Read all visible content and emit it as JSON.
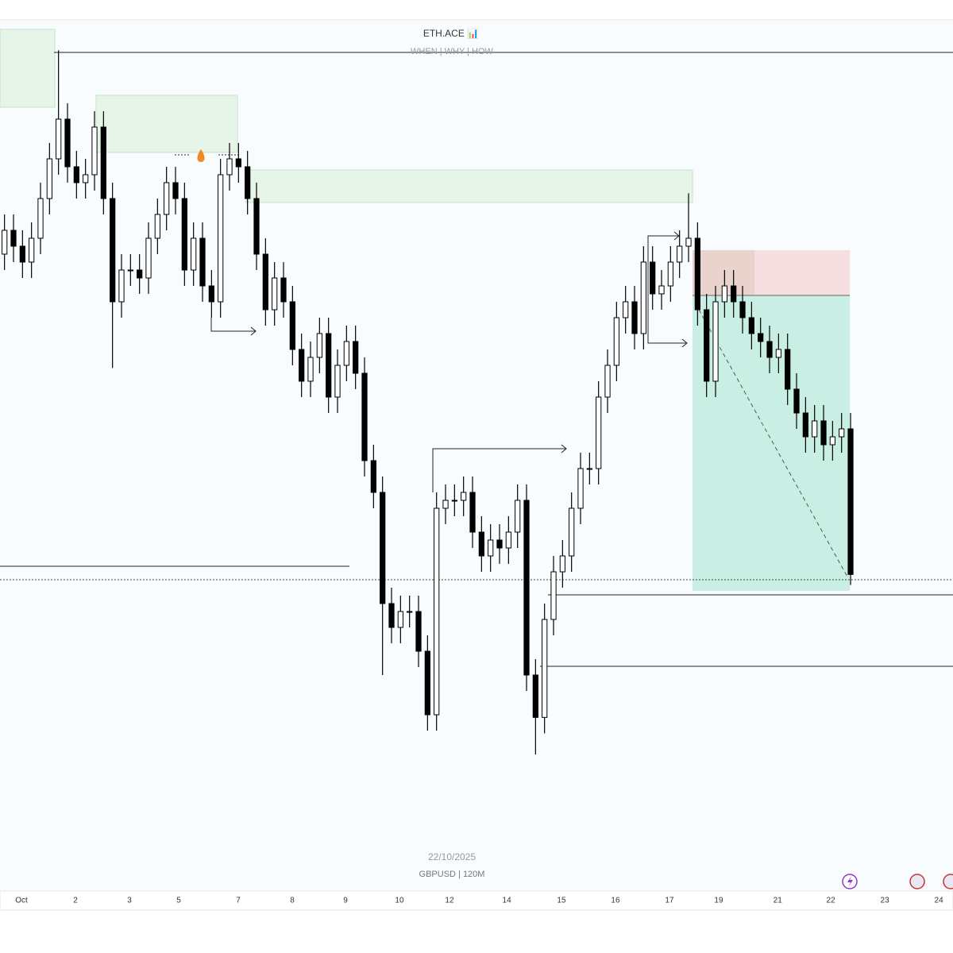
{
  "chart_data": {
    "type": "candlestick",
    "title": "ETH.ACE 📊",
    "subtitle": "WHEN | WHY | HOW",
    "date_label": "22/10/2025",
    "symbol_label": "GBPUSD | 120M",
    "up_color": "#ffffff",
    "down_color": "#000000",
    "open": [
      1.344,
      1.3449,
      1.3443,
      1.3437,
      1.3446,
      1.3461,
      1.3476,
      1.3491,
      1.3473,
      1.3467,
      1.347,
      1.3488,
      1.3461,
      1.3422,
      1.3434,
      1.3434,
      1.3431,
      1.3446,
      1.3455,
      1.3467,
      1.3461,
      1.3434,
      1.3446,
      1.3428,
      1.3422,
      1.347,
      1.3476,
      1.3473,
      1.3461,
      1.344,
      1.3419,
      1.3431,
      1.3422,
      1.3404,
      1.3392,
      1.3401,
      1.341,
      1.3386,
      1.3398,
      1.3407,
      1.3395,
      1.3362,
      1.335,
      1.3308,
      1.3299,
      1.3305,
      1.3305,
      1.329,
      1.3266,
      1.3344,
      1.3347,
      1.3347,
      1.335,
      1.3335,
      1.3326,
      1.3332,
      1.3329,
      1.3335,
      1.3347,
      1.3281,
      1.3265,
      1.3302,
      1.332,
      1.3326,
      1.3344,
      1.3359,
      1.3359,
      1.3386,
      1.3398,
      1.3416,
      1.3422,
      1.341,
      1.3437,
      1.3425,
      1.3428,
      1.3437,
      1.3443,
      1.3446,
      1.3419,
      1.3392,
      1.3422,
      1.3428,
      1.3422,
      1.3416,
      1.341,
      1.3407,
      1.3401,
      1.3404,
      1.3389,
      1.338,
      1.3371,
      1.3377,
      1.3368,
      1.3371,
      1.3374
    ],
    "high": [
      1.3455,
      1.3455,
      1.3449,
      1.3452,
      1.3467,
      1.3482,
      1.3517,
      1.3497,
      1.3479,
      1.3476,
      1.3494,
      1.3494,
      1.3467,
      1.344,
      1.344,
      1.344,
      1.3452,
      1.3461,
      1.3473,
      1.3473,
      1.3467,
      1.3452,
      1.3452,
      1.3434,
      1.3476,
      1.3482,
      1.3482,
      1.3479,
      1.3467,
      1.3446,
      1.3437,
      1.3437,
      1.3428,
      1.341,
      1.3407,
      1.3416,
      1.3416,
      1.3404,
      1.3413,
      1.3413,
      1.3401,
      1.3368,
      1.3356,
      1.3314,
      1.3311,
      1.3311,
      1.3311,
      1.3296,
      1.335,
      1.3353,
      1.3353,
      1.3356,
      1.3356,
      1.3341,
      1.3338,
      1.3338,
      1.3341,
      1.3353,
      1.3353,
      1.3287,
      1.3308,
      1.3326,
      1.3332,
      1.335,
      1.3365,
      1.3365,
      1.3392,
      1.3404,
      1.3422,
      1.3428,
      1.3428,
      1.3443,
      1.3443,
      1.3434,
      1.3443,
      1.3449,
      1.3463,
      1.3452,
      1.3425,
      1.3428,
      1.3434,
      1.3434,
      1.3428,
      1.3422,
      1.3416,
      1.3413,
      1.341,
      1.341,
      1.3395,
      1.3386,
      1.3383,
      1.3383,
      1.3377,
      1.338,
      1.338
    ],
    "low": [
      1.3434,
      1.3437,
      1.3431,
      1.3431,
      1.344,
      1.3455,
      1.347,
      1.3467,
      1.3461,
      1.3461,
      1.3464,
      1.3455,
      1.3397,
      1.3416,
      1.3428,
      1.3425,
      1.3425,
      1.344,
      1.3449,
      1.3455,
      1.3428,
      1.3428,
      1.3422,
      1.3416,
      1.3416,
      1.3464,
      1.3467,
      1.3455,
      1.3434,
      1.3413,
      1.3413,
      1.3416,
      1.3398,
      1.3386,
      1.3386,
      1.3395,
      1.338,
      1.338,
      1.3392,
      1.3389,
      1.3356,
      1.3344,
      1.3281,
      1.3293,
      1.3293,
      1.3299,
      1.3284,
      1.326,
      1.326,
      1.3338,
      1.3341,
      1.3341,
      1.3329,
      1.332,
      1.332,
      1.3323,
      1.3323,
      1.3329,
      1.3275,
      1.3251,
      1.3259,
      1.3296,
      1.3314,
      1.332,
      1.3338,
      1.3353,
      1.3353,
      1.338,
      1.3392,
      1.341,
      1.3404,
      1.3404,
      1.3419,
      1.3419,
      1.3422,
      1.3431,
      1.3437,
      1.3413,
      1.3386,
      1.3386,
      1.3416,
      1.3416,
      1.341,
      1.3404,
      1.3401,
      1.3395,
      1.3395,
      1.3383,
      1.3374,
      1.3365,
      1.3365,
      1.3362,
      1.3362,
      1.3365,
      1.3315
    ],
    "close": [
      1.3449,
      1.3443,
      1.3437,
      1.3446,
      1.3461,
      1.3476,
      1.3491,
      1.3473,
      1.3467,
      1.347,
      1.3488,
      1.3461,
      1.3422,
      1.3434,
      1.3434,
      1.3431,
      1.3446,
      1.3455,
      1.3467,
      1.3461,
      1.3434,
      1.3446,
      1.3428,
      1.3422,
      1.347,
      1.3476,
      1.3473,
      1.3461,
      1.344,
      1.3419,
      1.3431,
      1.3422,
      1.3404,
      1.3392,
      1.3401,
      1.341,
      1.3386,
      1.3398,
      1.3407,
      1.3395,
      1.3362,
      1.335,
      1.3308,
      1.3299,
      1.3305,
      1.3305,
      1.329,
      1.3266,
      1.3344,
      1.3347,
      1.3347,
      1.335,
      1.3335,
      1.3326,
      1.3332,
      1.3329,
      1.3335,
      1.3347,
      1.3281,
      1.3265,
      1.3302,
      1.332,
      1.3326,
      1.3344,
      1.3359,
      1.3359,
      1.3386,
      1.3398,
      1.3416,
      1.3422,
      1.341,
      1.3437,
      1.3425,
      1.3428,
      1.3437,
      1.3443,
      1.3446,
      1.3419,
      1.3392,
      1.3422,
      1.3428,
      1.3422,
      1.3416,
      1.341,
      1.3407,
      1.3401,
      1.3404,
      1.3389,
      1.338,
      1.3371,
      1.3377,
      1.3368,
      1.3371,
      1.3374,
      1.3319
    ],
    "xlim": [
      -0.5,
      105.38
    ],
    "ylim": [
      1.32,
      1.35285
    ],
    "xticks": [
      {
        "value": 1.88,
        "label": "Oct"
      },
      {
        "value": 7.88,
        "label": "2"
      },
      {
        "value": 13.88,
        "label": "3"
      },
      {
        "value": 19.35,
        "label": "5"
      },
      {
        "value": 25.97,
        "label": "7"
      },
      {
        "value": 31.97,
        "label": "8"
      },
      {
        "value": 37.88,
        "label": "9"
      },
      {
        "value": 43.88,
        "label": "10"
      },
      {
        "value": 49.44,
        "label": "12"
      },
      {
        "value": 55.8,
        "label": "14"
      },
      {
        "value": 61.88,
        "label": "15"
      },
      {
        "value": 67.88,
        "label": "16"
      },
      {
        "value": 73.88,
        "label": "17"
      },
      {
        "value": 79.35,
        "label": "19"
      },
      {
        "value": 85.9,
        "label": "21"
      },
      {
        "value": 91.8,
        "label": "22"
      },
      {
        "value": 97.8,
        "label": "23"
      },
      {
        "value": 103.8,
        "label": "24"
      }
    ],
    "grid": false
  }
}
